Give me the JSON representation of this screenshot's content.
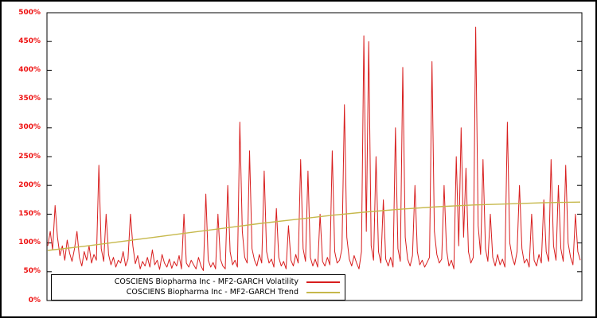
{
  "chart_data": {
    "type": "line",
    "title": "",
    "ylim": [
      0,
      500
    ],
    "ytick_step": 50,
    "ytick_labels": [
      "0%",
      "50%",
      "100%",
      "150%",
      "200%",
      "250%",
      "300%",
      "350%",
      "400%",
      "450%",
      "500%"
    ],
    "grid": false,
    "legend_position": "bottom-left",
    "background_color": "#ffffff",
    "axis_color": "#000000",
    "tick_label_color": "#ee1111",
    "series": [
      {
        "name": "COSCIENS Biopharma Inc - MF2-GARCH Volatility",
        "color": "#d81e1e",
        "unit": "%",
        "values": [
          95,
          120,
          88,
          165,
          110,
          78,
          95,
          70,
          105,
          82,
          68,
          90,
          120,
          75,
          60,
          85,
          70,
          95,
          65,
          80,
          70,
          235,
          90,
          68,
          150,
          80,
          62,
          75,
          58,
          70,
          65,
          85,
          60,
          72,
          150,
          95,
          64,
          78,
          55,
          68,
          60,
          75,
          58,
          88,
          62,
          70,
          54,
          80,
          65,
          58,
          72,
          56,
          68,
          60,
          78,
          55,
          150,
          65,
          58,
          70,
          62,
          55,
          75,
          60,
          52,
          185,
          70,
          58,
          66,
          55,
          150,
          72,
          60,
          55,
          200,
          85,
          62,
          70,
          58,
          310,
          120,
          75,
          65,
          260,
          90,
          70,
          60,
          80,
          65,
          225,
          85,
          65,
          72,
          58,
          160,
          75,
          60,
          68,
          55,
          130,
          70,
          60,
          80,
          65,
          245,
          90,
          68,
          225,
          75,
          60,
          72,
          58,
          150,
          68,
          60,
          75,
          62,
          260,
          85,
          65,
          70,
          90,
          340,
          110,
          72,
          60,
          78,
          65,
          55,
          85,
          460,
          120,
          450,
          95,
          70,
          250,
          85,
          65,
          175,
          72,
          60,
          75,
          58,
          300,
          90,
          68,
          405,
          110,
          72,
          60,
          78,
          200,
          85,
          62,
          70,
          58,
          66,
          75,
          415,
          120,
          80,
          65,
          72,
          200,
          88,
          60,
          70,
          55,
          250,
          95,
          300,
          110,
          230,
          85,
          65,
          75,
          475,
          130,
          80,
          245,
          90,
          68,
          150,
          75,
          60,
          80,
          62,
          72,
          58,
          310,
          100,
          75,
          62,
          85,
          200,
          90,
          65,
          72,
          58,
          150,
          70,
          60,
          80,
          65,
          175,
          85,
          68,
          245,
          95,
          70,
          200,
          90,
          68,
          235,
          100,
          75,
          62,
          150,
          85,
          70
        ]
      },
      {
        "name": "COSCIENS Biopharma Inc - MF2-GARCH Trend",
        "color": "#c6b84b",
        "unit": "%",
        "values": [
          87,
          94,
          102,
          110,
          118,
          126,
          134,
          141,
          148,
          154,
          159,
          163,
          166,
          168,
          170,
          171
        ]
      }
    ]
  }
}
